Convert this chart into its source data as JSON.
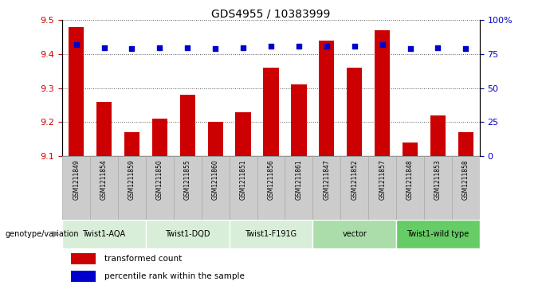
{
  "title": "GDS4955 / 10383999",
  "samples": [
    "GSM1211849",
    "GSM1211854",
    "GSM1211859",
    "GSM1211850",
    "GSM1211855",
    "GSM1211860",
    "GSM1211851",
    "GSM1211856",
    "GSM1211861",
    "GSM1211847",
    "GSM1211852",
    "GSM1211857",
    "GSM1211848",
    "GSM1211853",
    "GSM1211858"
  ],
  "bar_values": [
    9.48,
    9.26,
    9.17,
    9.21,
    9.28,
    9.2,
    9.23,
    9.36,
    9.31,
    9.44,
    9.36,
    9.47,
    9.14,
    9.22,
    9.17
  ],
  "percentile_values": [
    82,
    80,
    79,
    80,
    80,
    79,
    80,
    81,
    81,
    81,
    81,
    82,
    79,
    80,
    79
  ],
  "bar_color": "#cc0000",
  "dot_color": "#0000cc",
  "ylim_left": [
    9.1,
    9.5
  ],
  "ylim_right": [
    0,
    100
  ],
  "yticks_left": [
    9.1,
    9.2,
    9.3,
    9.4,
    9.5
  ],
  "yticks_right": [
    0,
    25,
    50,
    75,
    100
  ],
  "groups": [
    {
      "label": "Twist1-AQA",
      "start": 0,
      "end": 3
    },
    {
      "label": "Twist1-DQD",
      "start": 3,
      "end": 6
    },
    {
      "label": "Twist1-F191G",
      "start": 6,
      "end": 9
    },
    {
      "label": "vector",
      "start": 9,
      "end": 12
    },
    {
      "label": "Twist1-wild type",
      "start": 12,
      "end": 15
    }
  ],
  "group_colors": [
    "#d8eed8",
    "#d8eed8",
    "#d8eed8",
    "#aaddaa",
    "#66cc66"
  ],
  "genotype_label": "genotype/variation",
  "legend_bar_label": "transformed count",
  "legend_dot_label": "percentile rank within the sample",
  "left_axis_color": "#cc0000",
  "right_axis_color": "#0000cc",
  "grid_color": "#555555",
  "sample_box_color": "#cccccc",
  "sample_box_edge": "#aaaaaa"
}
